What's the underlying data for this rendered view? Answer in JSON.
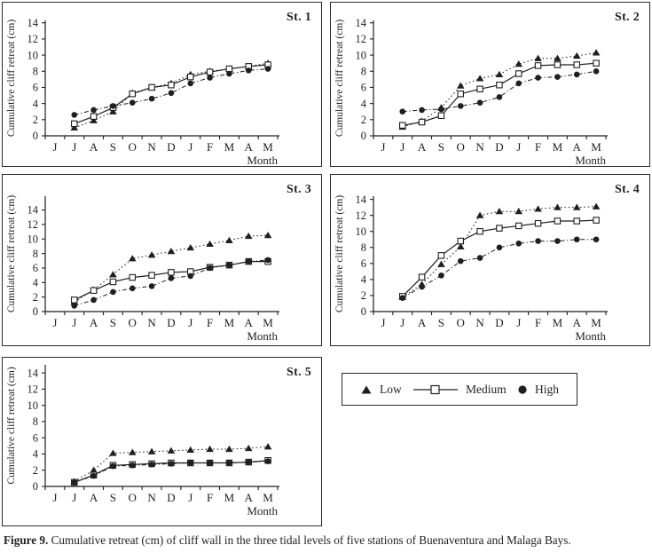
{
  "figure": {
    "caption_label": "Figure 9.",
    "caption_text": "Cumulative retreat (cm) of cliff wall in the three tidal levels of five stations of Buenaventura and Malaga Bays."
  },
  "colors": {
    "ink": "#1f1f1f",
    "background": "#ffffff"
  },
  "legend": {
    "position": "bottom-right",
    "items": [
      {
        "label": "Low",
        "marker": "filled-triangle",
        "line": "dotted"
      },
      {
        "label": "Medium",
        "marker": "open-square",
        "line": "solid"
      },
      {
        "label": "High",
        "marker": "filled-circle",
        "line": "dash-dot"
      }
    ]
  },
  "chart_data": [
    {
      "type": "line",
      "title": "St. 1",
      "xlabel": "Month",
      "ylabel": "Cumulative cliff retreat (cm)",
      "ylim": [
        0,
        14
      ],
      "ytick_step": 2,
      "grid": false,
      "categories": [
        "J",
        "J",
        "A",
        "S",
        "O",
        "N",
        "D",
        "J",
        "F",
        "M",
        "A",
        "M"
      ],
      "series": [
        {
          "name": "Low",
          "marker": "filled-triangle",
          "line": "dotted",
          "values": [
            null,
            1.0,
            1.9,
            3.0,
            5.3,
            6.0,
            6.5,
            7.6,
            8.0,
            8.3,
            8.6,
            9.0
          ]
        },
        {
          "name": "Medium",
          "marker": "open-square",
          "line": "solid",
          "values": [
            null,
            1.5,
            2.4,
            3.5,
            5.2,
            6.0,
            6.3,
            7.3,
            7.9,
            8.3,
            8.6,
            8.8
          ]
        },
        {
          "name": "High",
          "marker": "filled-circle",
          "line": "dash-dot",
          "values": [
            null,
            2.6,
            3.2,
            3.7,
            4.1,
            4.6,
            5.3,
            6.5,
            7.2,
            7.7,
            8.1,
            8.3
          ]
        }
      ]
    },
    {
      "type": "line",
      "title": "St. 2",
      "xlabel": "Month",
      "ylabel": "Cumulative cliff retreat (cm)",
      "ylim": [
        0,
        14
      ],
      "ytick_step": 2,
      "grid": false,
      "categories": [
        "J",
        "J",
        "A",
        "S",
        "O",
        "N",
        "D",
        "J",
        "F",
        "M",
        "A",
        "M"
      ],
      "series": [
        {
          "name": "Low",
          "marker": "filled-triangle",
          "line": "dotted",
          "values": [
            null,
            1.1,
            1.8,
            3.5,
            6.2,
            7.1,
            7.6,
            8.9,
            9.6,
            9.6,
            9.9,
            10.3
          ]
        },
        {
          "name": "Medium",
          "marker": "open-square",
          "line": "solid",
          "values": [
            null,
            1.3,
            1.7,
            2.5,
            5.2,
            5.8,
            6.3,
            7.7,
            8.7,
            8.8,
            8.8,
            9.0
          ]
        },
        {
          "name": "High",
          "marker": "filled-circle",
          "line": "dash-dot",
          "values": [
            null,
            3.0,
            3.2,
            3.3,
            3.7,
            4.1,
            4.8,
            6.5,
            7.2,
            7.3,
            7.6,
            8.0
          ]
        }
      ]
    },
    {
      "type": "line",
      "title": "St. 3",
      "xlabel": "Month",
      "ylabel": "Cumulative cliff retreat (cm)",
      "ylim": [
        0,
        14
      ],
      "ytick_step": 2,
      "grid": false,
      "categories": [
        "J",
        "J",
        "A",
        "S",
        "O",
        "N",
        "D",
        "J",
        "F",
        "M",
        "A",
        "M"
      ],
      "series": [
        {
          "name": "Low",
          "marker": "filled-triangle",
          "line": "dotted",
          "values": [
            null,
            1.3,
            3.0,
            5.1,
            7.3,
            7.8,
            8.3,
            8.8,
            9.3,
            9.8,
            10.4,
            10.5
          ]
        },
        {
          "name": "Medium",
          "marker": "open-square",
          "line": "solid",
          "values": [
            null,
            1.6,
            2.9,
            4.1,
            4.7,
            5.0,
            5.4,
            5.5,
            6.1,
            6.4,
            6.9,
            6.9
          ]
        },
        {
          "name": "High",
          "marker": "filled-circle",
          "line": "dash-dot",
          "values": [
            null,
            0.8,
            1.6,
            2.7,
            3.2,
            3.5,
            4.6,
            4.9,
            6.0,
            6.4,
            6.9,
            7.1
          ]
        }
      ]
    },
    {
      "type": "line",
      "title": "St. 4",
      "xlabel": "Month",
      "ylabel": "Cumulative cliff retreat (cm)",
      "ylim": [
        0,
        14
      ],
      "ytick_step": 2,
      "grid": false,
      "categories": [
        "J",
        "J",
        "A",
        "S",
        "O",
        "N",
        "D",
        "J",
        "F",
        "M",
        "A",
        "M"
      ],
      "series": [
        {
          "name": "Low",
          "marker": "filled-triangle",
          "line": "dotted",
          "values": [
            null,
            1.8,
            3.4,
            5.9,
            8.1,
            12.0,
            12.5,
            12.5,
            12.8,
            13.0,
            13.0,
            13.1
          ]
        },
        {
          "name": "Medium",
          "marker": "open-square",
          "line": "solid",
          "values": [
            null,
            1.9,
            4.3,
            7.0,
            8.8,
            10.0,
            10.4,
            10.7,
            11.0,
            11.3,
            11.3,
            11.4
          ]
        },
        {
          "name": "High",
          "marker": "filled-circle",
          "line": "dash-dot",
          "values": [
            null,
            1.7,
            3.1,
            4.5,
            6.3,
            6.7,
            8.0,
            8.5,
            8.8,
            8.8,
            9.0,
            9.0
          ]
        }
      ]
    },
    {
      "type": "line",
      "title": "St. 5",
      "xlabel": "Month",
      "ylabel": "Cumulative cliff retreat (cm)",
      "ylim": [
        0,
        14
      ],
      "ytick_step": 2,
      "grid": false,
      "categories": [
        "J",
        "J",
        "A",
        "S",
        "O",
        "N",
        "D",
        "J",
        "F",
        "M",
        "A",
        "M"
      ],
      "series": [
        {
          "name": "Low",
          "marker": "filled-triangle",
          "line": "dotted",
          "values": [
            null,
            0.6,
            2.0,
            4.1,
            4.2,
            4.3,
            4.4,
            4.5,
            4.6,
            4.6,
            4.7,
            4.9
          ]
        },
        {
          "name": "Medium",
          "marker": "open-square",
          "line": "solid",
          "values": [
            null,
            0.5,
            1.4,
            2.6,
            2.7,
            2.8,
            2.9,
            2.9,
            2.9,
            2.9,
            3.0,
            3.2
          ]
        },
        {
          "name": "High",
          "marker": "filled-circle",
          "line": "dash-dot",
          "values": [
            null,
            0.5,
            1.3,
            2.5,
            2.6,
            2.7,
            2.8,
            2.9,
            2.9,
            2.9,
            3.0,
            3.1
          ]
        }
      ]
    }
  ]
}
